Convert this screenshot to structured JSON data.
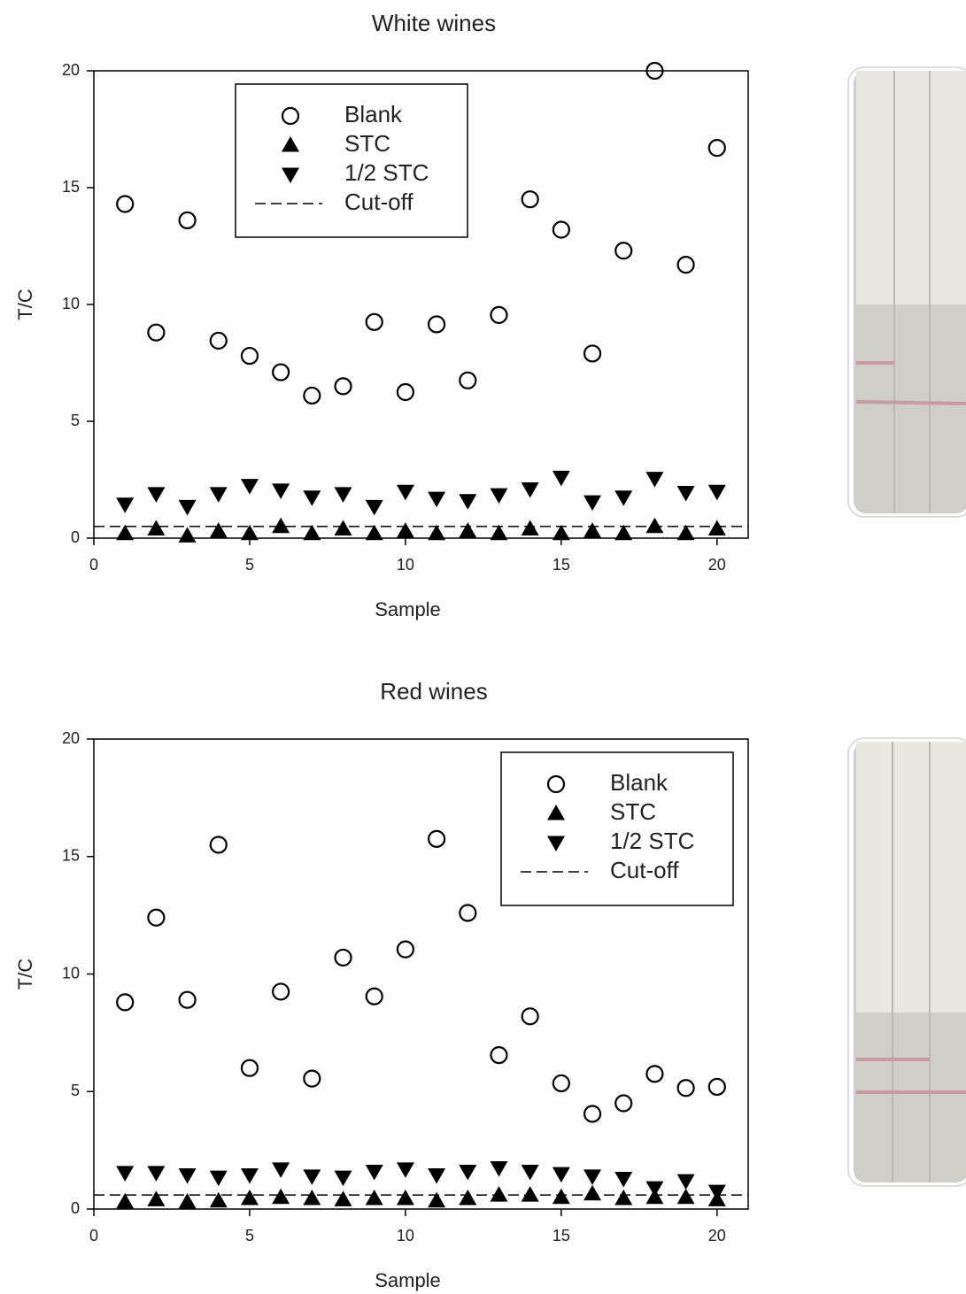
{
  "chart_data": [
    {
      "type": "scatter",
      "title": "White wines",
      "x_label": "Sample",
      "y_label": "T/C",
      "x": [
        1,
        2,
        3,
        4,
        5,
        6,
        7,
        8,
        9,
        10,
        11,
        12,
        13,
        14,
        15,
        16,
        17,
        18,
        19,
        20
      ],
      "series": [
        {
          "name": "Blank",
          "color": "#000000",
          "marker": "circle-open",
          "values": [
            14.3,
            8.8,
            13.6,
            8.45,
            7.8,
            7.1,
            6.1,
            6.5,
            9.25,
            6.25,
            9.15,
            6.75,
            9.55,
            14.5,
            13.2,
            7.9,
            12.3,
            20.0,
            11.7,
            16.7
          ]
        },
        {
          "name": "STC",
          "color": "#000000",
          "marker": "triangle-up",
          "values": [
            0.2,
            0.4,
            0.1,
            0.3,
            0.2,
            0.5,
            0.2,
            0.4,
            0.2,
            0.3,
            0.2,
            0.3,
            0.2,
            0.4,
            0.2,
            0.3,
            0.2,
            0.5,
            0.2,
            0.4
          ]
        },
        {
          "name": "1/2 STC",
          "color": "#000000",
          "marker": "triangle-down",
          "values": [
            1.45,
            1.9,
            1.35,
            1.9,
            2.25,
            2.05,
            1.75,
            1.9,
            1.35,
            2.0,
            1.7,
            1.6,
            1.85,
            2.1,
            2.6,
            1.55,
            1.75,
            2.55,
            1.95,
            2.0
          ]
        }
      ],
      "reference_line": {
        "name": "Cut-off",
        "value": 0.5,
        "color": "#000000",
        "style": "dashed"
      },
      "xlim": [
        0,
        21
      ],
      "xticks": [
        0,
        5,
        10,
        15,
        20
      ],
      "ylim": [
        0,
        20
      ],
      "yticks": [
        0,
        5,
        10,
        15,
        20
      ],
      "legend": "upper left"
    },
    {
      "type": "scatter",
      "title": "Red wines",
      "x_label": "Sample",
      "y_label": "T/C",
      "x": [
        1,
        2,
        3,
        4,
        5,
        6,
        7,
        8,
        9,
        10,
        11,
        12,
        13,
        14,
        15,
        16,
        17,
        18,
        19,
        20
      ],
      "series": [
        {
          "name": "Blank",
          "color": "#000000",
          "marker": "circle-open",
          "values": [
            8.8,
            12.4,
            8.9,
            15.5,
            6.0,
            9.25,
            5.55,
            10.7,
            9.05,
            11.05,
            15.75,
            12.6,
            6.55,
            8.2,
            5.35,
            4.05,
            4.5,
            5.75,
            5.15,
            5.2
          ]
        },
        {
          "name": "STC",
          "color": "#000000",
          "marker": "triangle-up",
          "values": [
            0.3,
            0.4,
            0.3,
            0.35,
            0.45,
            0.5,
            0.45,
            0.4,
            0.45,
            0.45,
            0.35,
            0.45,
            0.6,
            0.6,
            0.5,
            0.65,
            0.45,
            0.5,
            0.5,
            0.4
          ]
        },
        {
          "name": "1/2 STC",
          "color": "#000000",
          "marker": "triangle-down",
          "values": [
            1.55,
            1.55,
            1.45,
            1.35,
            1.45,
            1.7,
            1.4,
            1.35,
            1.6,
            1.7,
            1.45,
            1.6,
            1.75,
            1.6,
            1.5,
            1.4,
            1.3,
            0.9,
            1.2,
            0.75
          ]
        }
      ],
      "reference_line": {
        "name": "Cut-off",
        "value": 0.6,
        "color": "#000000",
        "style": "dashed"
      },
      "xlim": [
        0,
        21
      ],
      "xticks": [
        0,
        5,
        10,
        15,
        20
      ],
      "ylim": [
        0,
        20
      ],
      "yticks": [
        0,
        5,
        10,
        15,
        20
      ],
      "legend": "upper right"
    }
  ]
}
